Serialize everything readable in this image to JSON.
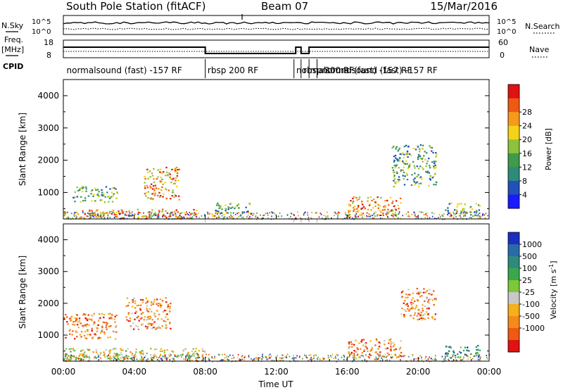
{
  "header": {
    "station": "South Pole Station (fitACF)",
    "beam": "Beam 07",
    "date": "15/Mar/2016"
  },
  "strip_labels": {
    "nsky": "N.Sky",
    "freq_line1": "Freq.",
    "freq_line2": "[MHz]",
    "cpid": "CPID",
    "nsearch": "N.Search",
    "nave": "Nave",
    "nsky_top": "10^5",
    "nsky_bottom": "10^0",
    "nsearch_top": "10^5",
    "nsearch_bottom": "10^0",
    "freq_top": "18",
    "freq_bottom": "8",
    "nave_top": "60",
    "nave_bottom": "0"
  },
  "cpid_labels": [
    {
      "text": "normalsound (fast) -157 RF",
      "hour": 0.1
    },
    {
      "text": "rbsp 200 RF",
      "hour": 8.05
    },
    {
      "text": "normalsound (fast) -157 RF",
      "hour": 13.05
    },
    {
      "text": "rbsp 200 RF",
      "hour": 13.45
    },
    {
      "text": "normalsound (fast) -157 RF",
      "hour": 14.5
    }
  ],
  "mode_changes_hours": [
    8.0,
    13.0,
    13.4,
    13.85,
    14.3
  ],
  "chart_data": [
    {
      "type": "heatmap",
      "panel": "power",
      "ylabel": "Slant Range [km]",
      "ylim": [
        180,
        4500
      ],
      "yticks": [
        1000,
        2000,
        3000,
        4000
      ],
      "colorbar_label": "Power [dB]",
      "colorbar_ticks": [
        "4",
        "8",
        "12",
        "16",
        "20",
        "24",
        "28"
      ],
      "colors": [
        "#1a1aff",
        "#2050b8",
        "#2e8a7a",
        "#3f9a4a",
        "#8cc23c",
        "#f5d21a",
        "#f59a1a",
        "#ee5a12",
        "#e01212"
      ],
      "echo_regions": [
        {
          "x": [
            0.0,
            7.5
          ],
          "range": [
            200,
            500
          ],
          "level": "high"
        },
        {
          "x": [
            0.5,
            3.0
          ],
          "range": [
            700,
            1200
          ],
          "level": "medium"
        },
        {
          "x": [
            4.5,
            6.5
          ],
          "range": [
            800,
            1800
          ],
          "level": "high"
        },
        {
          "x": [
            8.5,
            10.5
          ],
          "range": [
            300,
            700
          ],
          "level": "medium"
        },
        {
          "x": [
            16.0,
            19.0
          ],
          "range": [
            300,
            900
          ],
          "level": "high"
        },
        {
          "x": [
            18.5,
            21.0
          ],
          "range": [
            1200,
            2500
          ],
          "level": "medium"
        },
        {
          "x": [
            21.5,
            23.5
          ],
          "range": [
            300,
            700
          ],
          "level": "medium"
        }
      ]
    },
    {
      "type": "heatmap",
      "panel": "velocity",
      "xlabel": "Time UT",
      "ylabel": "Slant Range [km]",
      "ylim": [
        180,
        4500
      ],
      "yticks": [
        1000,
        2000,
        3000,
        4000
      ],
      "colorbar_label": "Velocity [m s^-1]",
      "colorbar_ticks": [
        "1000",
        "500",
        "100",
        "25",
        "-25",
        "-100",
        "-500",
        "-1000"
      ],
      "colors": [
        "#1a2fbf",
        "#2a6aa8",
        "#2f8a7e",
        "#3aa84a",
        "#7cc83a",
        "#c8c8c8",
        "#f5b01a",
        "#f58a1a",
        "#ee5a12",
        "#e01212"
      ],
      "echo_regions": [
        {
          "x": [
            0.0,
            3.0
          ],
          "range": [
            900,
            1700
          ],
          "level": "negative"
        },
        {
          "x": [
            3.5,
            6.0
          ],
          "range": [
            1200,
            2200
          ],
          "level": "negative"
        },
        {
          "x": [
            0.0,
            8.0
          ],
          "range": [
            200,
            600
          ],
          "level": "mixed"
        },
        {
          "x": [
            16.0,
            19.0
          ],
          "range": [
            300,
            900
          ],
          "level": "negative"
        },
        {
          "x": [
            19.0,
            21.0
          ],
          "range": [
            1500,
            2500
          ],
          "level": "negative"
        },
        {
          "x": [
            21.5,
            23.5
          ],
          "range": [
            300,
            700
          ],
          "level": "positive"
        }
      ]
    }
  ],
  "x_axis": {
    "label": "Time UT",
    "ticks": [
      "00:00",
      "04:00",
      "08:00",
      "12:00",
      "16:00",
      "20:00",
      "00:00"
    ],
    "xlim_hours": [
      0,
      24
    ]
  }
}
